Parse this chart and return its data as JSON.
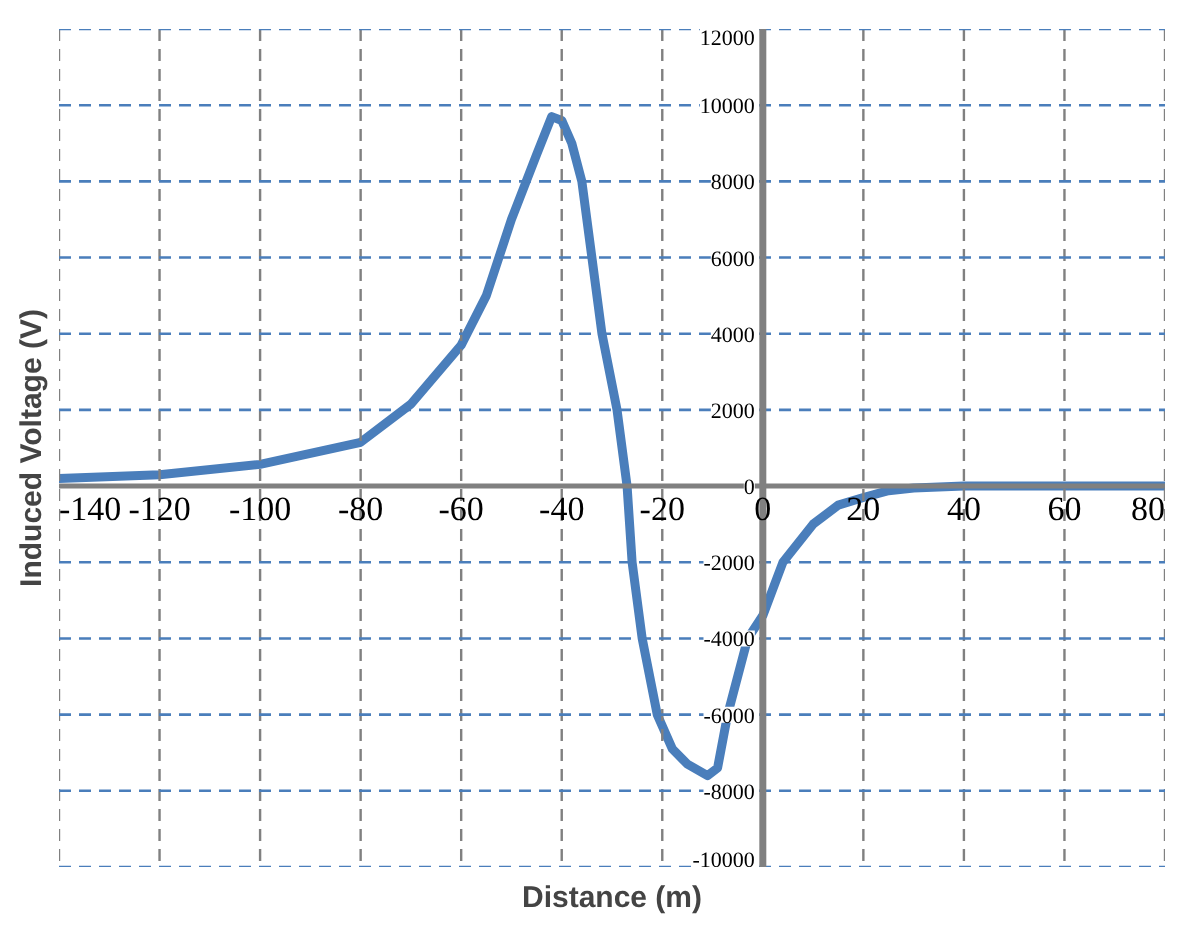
{
  "chart_data": {
    "type": "line",
    "xlabel": "Distance (m)",
    "ylabel": "Induced Voltage (V)",
    "x": [
      -140,
      -120,
      -100,
      -80,
      -70,
      -60,
      -55,
      -50,
      -45,
      -42,
      -40,
      -38,
      -36,
      -32,
      -29,
      -27,
      -26,
      -24,
      -21,
      -18,
      -15,
      -11,
      -9,
      -7,
      -3,
      0,
      4,
      10,
      15,
      20,
      25,
      30,
      40,
      60,
      80
    ],
    "series": [
      {
        "color": "#4a7ebb",
        "values": [
          200,
          300,
          570,
          1150,
          2150,
          3700,
          5000,
          7000,
          8700,
          9700,
          9600,
          9000,
          8000,
          4000,
          2000,
          0,
          -2000,
          -4000,
          -6000,
          -6900,
          -7300,
          -7600,
          -7400,
          -6000,
          -4000,
          -3400,
          -2000,
          -1000,
          -500,
          -300,
          -120,
          -50,
          0,
          0,
          0
        ]
      }
    ],
    "xlim": [
      -140,
      80
    ],
    "xticks": [
      -140,
      -120,
      -100,
      -80,
      -60,
      -40,
      -20,
      0,
      20,
      40,
      60,
      80
    ],
    "ylim": [
      -10000,
      12000
    ],
    "yticks": [
      -10000,
      -8000,
      -6000,
      -4000,
      -2000,
      0,
      2000,
      4000,
      6000,
      8000,
      10000,
      12000
    ],
    "grid": true,
    "line_style": "solid",
    "marker": "none"
  }
}
